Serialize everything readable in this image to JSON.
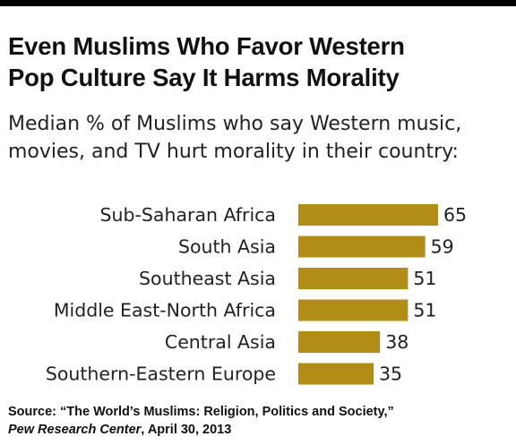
{
  "title_line1": "Even Muslims Who Favor Western",
  "title_line2": "Pop Culture Say It Harms Morality",
  "subtitle_line1": "Median % of Muslims who say Western music,",
  "subtitle_line2": "movies, and TV hurt morality in their country:",
  "source": {
    "line1": "Source: “The World’s Muslims: Religion, Politics and Society,”",
    "org": "Pew Research Center",
    "date": ", April 30, 2013"
  },
  "colors": {
    "bar": "#b28d15",
    "top_rule": "#000000"
  },
  "chart_data": {
    "type": "bar",
    "orientation": "horizontal",
    "title": "Even Muslims Who Favor Western Pop Culture Say It Harms Morality",
    "subtitle": "Median % of Muslims who say Western music, movies, and TV hurt morality in their country:",
    "categories": [
      "Sub-Saharan Africa",
      "South Asia",
      "Southeast Asia",
      "Middle East-North Africa",
      "Central Asia",
      "Southern-Eastern Europe"
    ],
    "values": [
      65,
      59,
      51,
      51,
      38,
      35
    ],
    "grid": false,
    "legend": "none"
  }
}
